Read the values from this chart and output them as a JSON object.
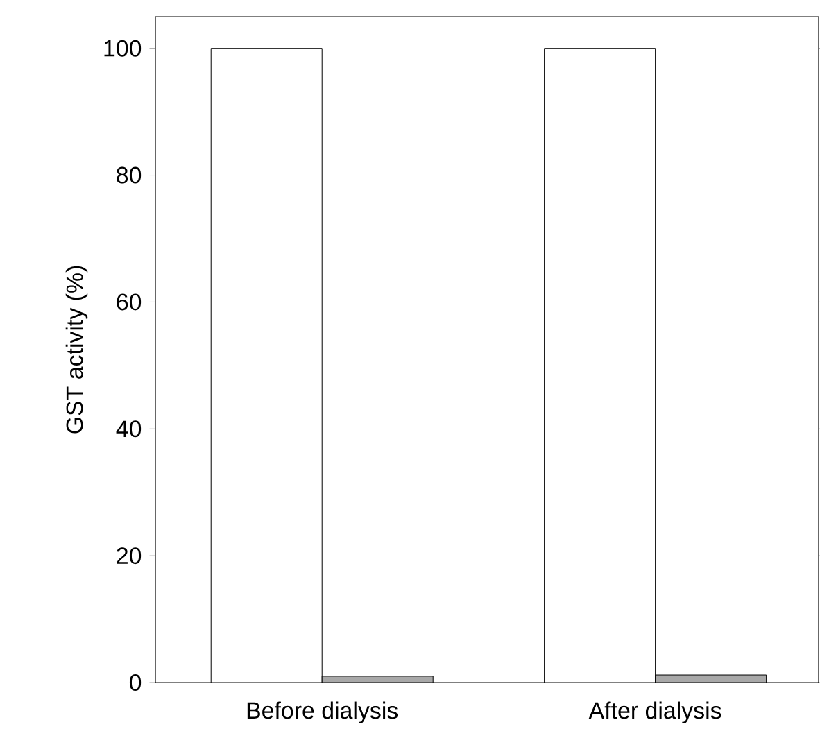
{
  "chart_data": {
    "type": "bar",
    "ylabel": "GST activity (%)",
    "categories": [
      "Before dialysis",
      "After dialysis"
    ],
    "series": [
      {
        "color": "#ffffff",
        "values": [
          100,
          100
        ]
      },
      {
        "color": "#a8a8a8",
        "values": [
          1.0,
          1.2
        ]
      }
    ],
    "ylim": [
      0,
      105
    ],
    "yticks": [
      0,
      20,
      40,
      60,
      80,
      100
    ]
  }
}
